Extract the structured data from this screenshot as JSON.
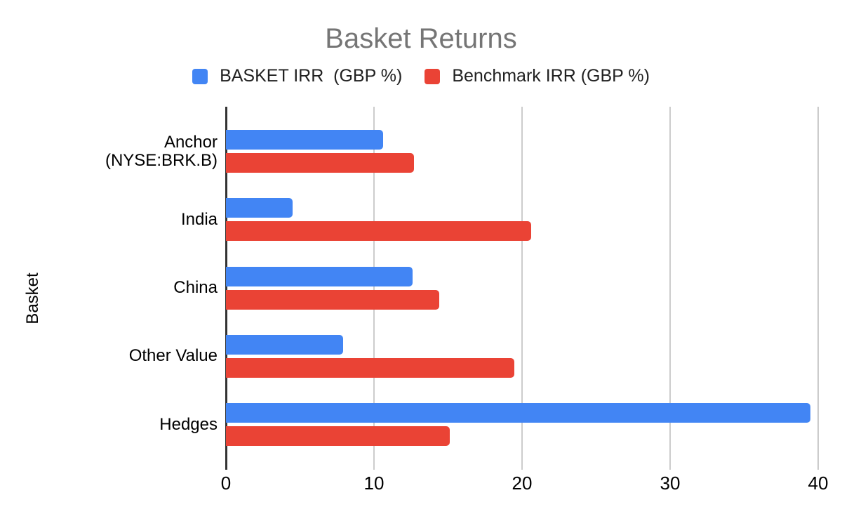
{
  "title": "Basket Returns",
  "colors": {
    "basket_series": "#4285F4",
    "benchmark_series": "#EA4335",
    "gridline": "#CCCCCC",
    "axis_line": "#333333",
    "title_text": "#757575"
  },
  "legend": [
    {
      "label": "BASKET IRR  (GBP %)",
      "color": "#4285F4"
    },
    {
      "label": "Benchmark IRR (GBP %)",
      "color": "#EA4335"
    }
  ],
  "chart_data": {
    "type": "bar",
    "orientation": "horizontal",
    "title": "Basket Returns",
    "categories": [
      "Anchor (NYSE:BRK.B)",
      "India",
      "China",
      "Other Value",
      "Hedges"
    ],
    "series": [
      {
        "name": "BASKET IRR  (GBP %)",
        "color": "#4285F4",
        "values": [
          10.6,
          4.5,
          12.6,
          7.9,
          39.5
        ]
      },
      {
        "name": "Benchmark IRR (GBP %)",
        "color": "#EA4335",
        "values": [
          12.7,
          20.6,
          14.4,
          19.5,
          15.1
        ]
      }
    ],
    "x_axis": {
      "ticks": [
        0,
        10,
        20,
        30,
        40
      ],
      "min": 0,
      "max": 40
    },
    "y_axis_label": "Basket",
    "grid": true,
    "legend_position": "top"
  }
}
